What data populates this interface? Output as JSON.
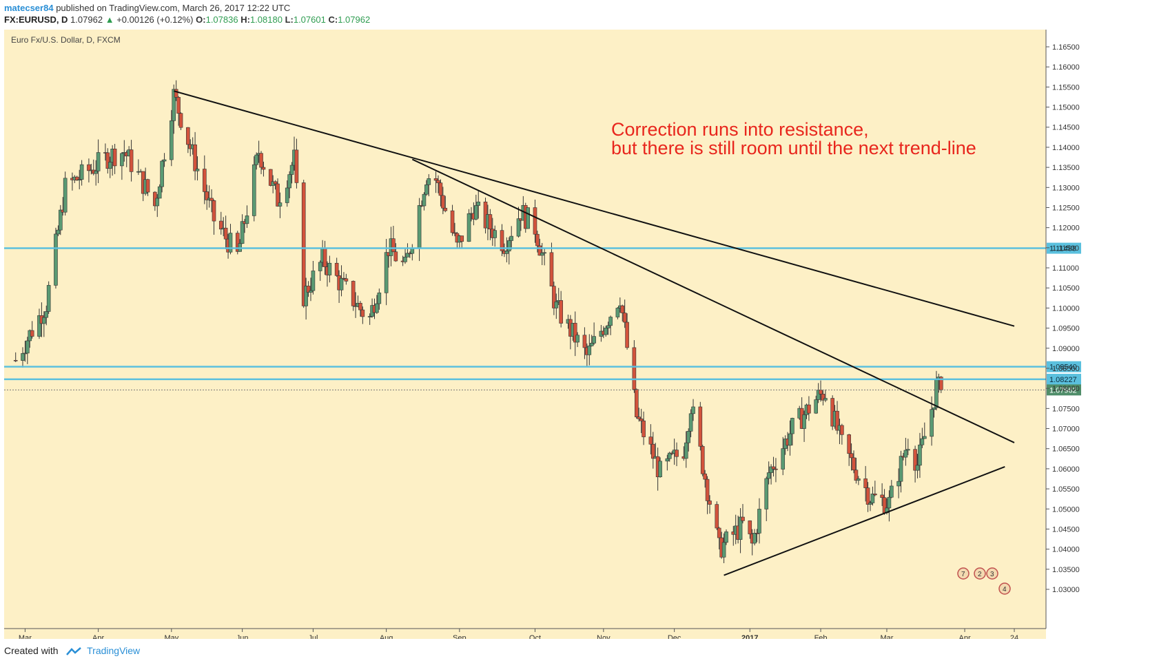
{
  "header": {
    "author": "matecser84",
    "published": "published on TradingView.com, March 26, 2017 12:22 UTC",
    "symbol": "FX:EURUSD, D",
    "last": "1.07962",
    "change": "+0.00126 (+0.12%)",
    "open_label": "O:",
    "open": "1.07836",
    "high_label": "H:",
    "high": "1.08180",
    "low_label": "L:",
    "low": "1.07601",
    "close_label": "C:",
    "close": "1.07962"
  },
  "chart_title": "Euro Fx/U.S. Dollar, D, FXCM",
  "annotation": {
    "line1": "Correction runs into resistance,",
    "line2": "but there is still room until the next trend-line",
    "color": "#e8261d"
  },
  "footer": {
    "created_with": "Created with",
    "brand": "TradingView"
  },
  "colors": {
    "background": "#fdf0c6",
    "up_candle": "#5a9a73",
    "down_candle": "#d2533c",
    "horizontal_line": "#5bc0de",
    "trend_line": "#111111",
    "last_price_tag": "#4f8d69",
    "annotation": "#e8261d"
  },
  "chart_data": {
    "type": "candlestick",
    "symbol": "EURUSD",
    "ylim": [
      1.0265,
      1.168
    ],
    "y_ticks": [
      "1.16500",
      "1.16000",
      "1.15500",
      "1.15000",
      "1.14500",
      "1.14000",
      "1.13500",
      "1.13000",
      "1.12500",
      "1.12000",
      "1.11500",
      "1.11000",
      "1.10500",
      "1.10000",
      "1.09500",
      "1.09000",
      "1.08500",
      "1.08000",
      "1.07500",
      "1.07000",
      "1.06500",
      "1.06000",
      "1.05500",
      "1.05000",
      "1.04500",
      "1.04000",
      "1.03500",
      "1.03000"
    ],
    "x_labels": [
      "Mar",
      "Apr",
      "May",
      "Jun",
      "Jul",
      "Aug",
      "Sep",
      "Oct",
      "Nov",
      "Dec",
      "2017",
      "Feb",
      "Mar",
      "Apr",
      "24"
    ],
    "horizontal_levels": [
      {
        "value": 1.11488,
        "label": "1.11488"
      },
      {
        "value": 1.0854,
        "label": "1.08540"
      },
      {
        "value": 1.08227,
        "label": "1.08227"
      }
    ],
    "last_price": {
      "value": 1.07962,
      "label": "1.07962"
    },
    "trend_lines": [
      {
        "from": [
          "2016-05-03",
          1.154
        ],
        "to": [
          "2017-04-24",
          1.0955
        ]
      },
      {
        "from": [
          "2016-08-12",
          1.137
        ],
        "to": [
          "2017-04-24",
          1.0665
        ]
      },
      {
        "from": [
          "2016-12-22",
          1.0335
        ],
        "to": [
          "2017-04-20",
          1.0605
        ]
      }
    ],
    "anchors": [
      {
        "date": "2016-02-26",
        "price": 1.087
      },
      {
        "date": "2016-03-10",
        "price": 1.101
      },
      {
        "date": "2016-03-18",
        "price": 1.13
      },
      {
        "date": "2016-04-06",
        "price": 1.138
      },
      {
        "date": "2016-04-12",
        "price": 1.139
      },
      {
        "date": "2016-04-21",
        "price": 1.13
      },
      {
        "date": "2016-04-25",
        "price": 1.1255
      },
      {
        "date": "2016-05-03",
        "price": 1.153
      },
      {
        "date": "2016-05-10",
        "price": 1.14
      },
      {
        "date": "2016-05-20",
        "price": 1.122
      },
      {
        "date": "2016-05-30",
        "price": 1.113
      },
      {
        "date": "2016-06-08",
        "price": 1.139
      },
      {
        "date": "2016-06-16",
        "price": 1.127
      },
      {
        "date": "2016-06-23",
        "price": 1.137
      },
      {
        "date": "2016-06-27",
        "price": 1.103
      },
      {
        "date": "2016-07-05",
        "price": 1.112
      },
      {
        "date": "2016-07-22",
        "price": 1.099
      },
      {
        "date": "2016-07-25",
        "price": 1.0975
      },
      {
        "date": "2016-08-02",
        "price": 1.115
      },
      {
        "date": "2016-08-09",
        "price": 1.11
      },
      {
        "date": "2016-08-18",
        "price": 1.133
      },
      {
        "date": "2016-08-22",
        "price": 1.132
      },
      {
        "date": "2016-08-31",
        "price": 1.115
      },
      {
        "date": "2016-09-07",
        "price": 1.125
      },
      {
        "date": "2016-09-20",
        "price": 1.116
      },
      {
        "date": "2016-09-27",
        "price": 1.124
      },
      {
        "date": "2016-10-03",
        "price": 1.12
      },
      {
        "date": "2016-10-12",
        "price": 1.1
      },
      {
        "date": "2016-10-25",
        "price": 1.088
      },
      {
        "date": "2016-11-08",
        "price": 1.103
      },
      {
        "date": "2016-11-15",
        "price": 1.073
      },
      {
        "date": "2016-11-25",
        "price": 1.059
      },
      {
        "date": "2016-12-05",
        "price": 1.065
      },
      {
        "date": "2016-12-08",
        "price": 1.076
      },
      {
        "date": "2016-12-20",
        "price": 1.04
      },
      {
        "date": "2016-12-30",
        "price": 1.046
      },
      {
        "date": "2017-01-03",
        "price": 1.041
      },
      {
        "date": "2017-01-10",
        "price": 1.059
      },
      {
        "date": "2017-01-20",
        "price": 1.07
      },
      {
        "date": "2017-01-31",
        "price": 1.078
      },
      {
        "date": "2017-02-03",
        "price": 1.079
      },
      {
        "date": "2017-02-10",
        "price": 1.066
      },
      {
        "date": "2017-02-22",
        "price": 1.053
      },
      {
        "date": "2017-03-02",
        "price": 1.0515
      },
      {
        "date": "2017-03-10",
        "price": 1.067
      },
      {
        "date": "2017-03-14",
        "price": 1.061
      },
      {
        "date": "2017-03-20",
        "price": 1.075
      },
      {
        "date": "2017-03-22",
        "price": 1.0805
      },
      {
        "date": "2017-03-24",
        "price": 1.0796
      }
    ],
    "legend_badges": [
      "7",
      "2",
      "3",
      "4"
    ]
  }
}
